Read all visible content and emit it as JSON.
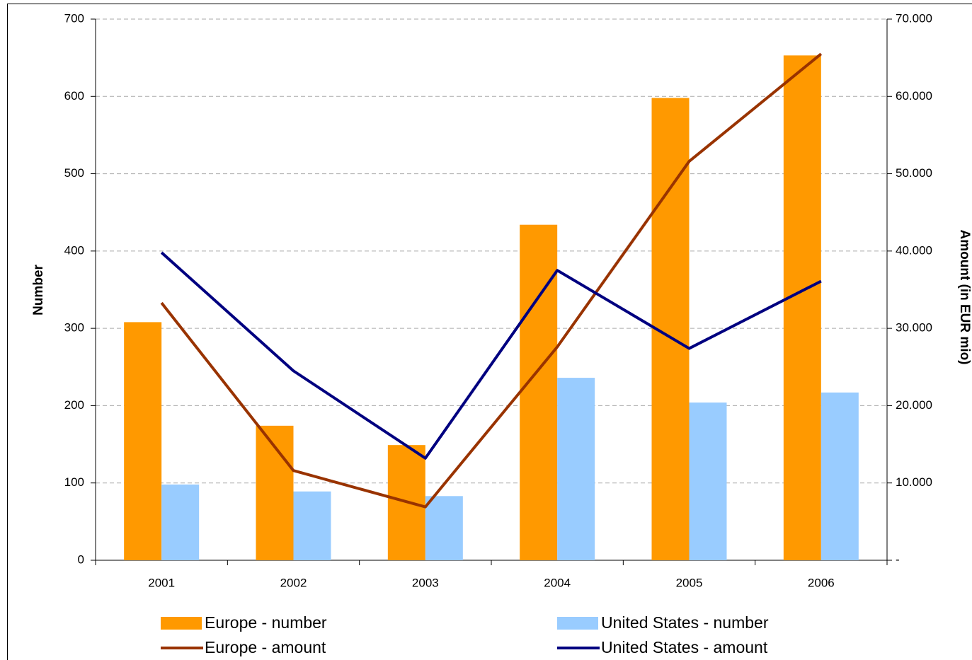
{
  "chart_data": {
    "type": "bar",
    "categories": [
      "2001",
      "2002",
      "2003",
      "2004",
      "2005",
      "2006"
    ],
    "ylabel": "Number",
    "y2label": "Amount (in EUR mio)",
    "ylim": [
      0,
      700
    ],
    "yticks": [
      0,
      100,
      200,
      300,
      400,
      500,
      600,
      700
    ],
    "y2lim": [
      0,
      70000
    ],
    "y2ticks": [
      {
        "value": 0,
        "label": "-"
      },
      {
        "value": 10000,
        "label": "10.000"
      },
      {
        "value": 20000,
        "label": "20.000"
      },
      {
        "value": 30000,
        "label": "30.000"
      },
      {
        "value": 40000,
        "label": "40.000"
      },
      {
        "value": 50000,
        "label": "50.000"
      },
      {
        "value": 60000,
        "label": "60.000"
      },
      {
        "value": 70000,
        "label": "70.000"
      }
    ],
    "grid": true,
    "series": [
      {
        "name": "Europe - number",
        "type": "bar",
        "color": "#ff9900",
        "values": [
          308,
          174,
          149,
          434,
          598,
          653
        ]
      },
      {
        "name": "United States - number",
        "type": "bar",
        "color": "#99ccff",
        "values": [
          98,
          89,
          83,
          236,
          204,
          217
        ]
      },
      {
        "name": "Europe - amount",
        "type": "line",
        "axis": "y2",
        "color": "#993300",
        "values": [
          33300,
          11600,
          6900,
          27600,
          51600,
          65500
        ]
      },
      {
        "name": "United States - amount",
        "type": "line",
        "axis": "y2",
        "color": "#000080",
        "values": [
          39800,
          24500,
          13200,
          37500,
          27400,
          36100
        ]
      }
    ]
  }
}
